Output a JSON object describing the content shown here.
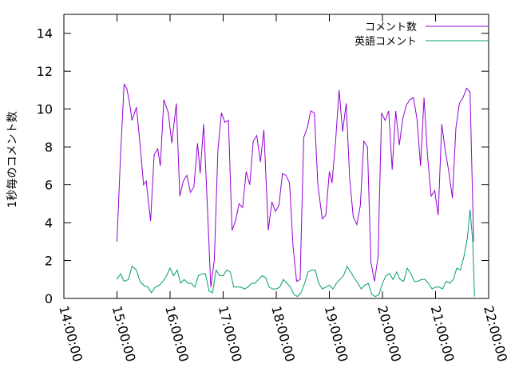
{
  "chart_data": {
    "type": "line",
    "ylabel": "1秒毎のコメント数",
    "xlim": [
      "14:00:00",
      "22:00:00"
    ],
    "ylim": [
      0,
      15
    ],
    "x_ticks": [
      "14:00:00",
      "15:00:00",
      "16:00:00",
      "17:00:00",
      "18:00:00",
      "19:00:00",
      "20:00:00",
      "21:00:00",
      "22:00:00"
    ],
    "y_ticks": [
      "0",
      "2",
      "4",
      "6",
      "8",
      "10",
      "12",
      "14"
    ],
    "grid": false,
    "legend_position": "top-right",
    "series": [
      {
        "name": "コメント数",
        "color": "#9400d3",
        "points": [
          [
            "15:00:00",
            3.0
          ],
          [
            "15:04:00",
            7.5
          ],
          [
            "15:08:00",
            11.3
          ],
          [
            "15:11:00",
            11.1
          ],
          [
            "15:14:00",
            10.4
          ],
          [
            "15:17:00",
            9.4
          ],
          [
            "15:22:00",
            10.1
          ],
          [
            "15:26:00",
            8.2
          ],
          [
            "15:30:00",
            6.0
          ],
          [
            "15:33:00",
            6.2
          ],
          [
            "15:38:00",
            4.1
          ],
          [
            "15:42:00",
            7.6
          ],
          [
            "15:46:00",
            7.9
          ],
          [
            "15:49:00",
            7.0
          ],
          [
            "15:53:00",
            10.5
          ],
          [
            "15:58:00",
            9.8
          ],
          [
            "16:02:00",
            8.2
          ],
          [
            "16:07:00",
            10.3
          ],
          [
            "16:11:00",
            5.4
          ],
          [
            "16:15:00",
            6.2
          ],
          [
            "16:19:00",
            6.5
          ],
          [
            "16:23:00",
            5.6
          ],
          [
            "16:27:00",
            5.9
          ],
          [
            "16:31:00",
            8.2
          ],
          [
            "16:34:00",
            6.6
          ],
          [
            "16:38:00",
            9.2
          ],
          [
            "16:42:00",
            5.0
          ],
          [
            "16:46:00",
            0.6
          ],
          [
            "16:50:00",
            2.0
          ],
          [
            "16:54:00",
            7.8
          ],
          [
            "16:58:00",
            9.8
          ],
          [
            "17:02:00",
            9.3
          ],
          [
            "17:06:00",
            9.4
          ],
          [
            "17:10:00",
            3.6
          ],
          [
            "17:14:00",
            4.1
          ],
          [
            "17:18:00",
            5.0
          ],
          [
            "17:22:00",
            4.8
          ],
          [
            "17:26:00",
            6.7
          ],
          [
            "17:30:00",
            6.0
          ],
          [
            "17:34:00",
            8.3
          ],
          [
            "17:38:00",
            8.6
          ],
          [
            "17:42:00",
            7.2
          ],
          [
            "17:46:00",
            8.9
          ],
          [
            "17:51:00",
            3.6
          ],
          [
            "17:55:00",
            5.1
          ],
          [
            "17:59:00",
            4.6
          ],
          [
            "18:03:00",
            4.9
          ],
          [
            "18:07:00",
            6.6
          ],
          [
            "18:11:00",
            6.5
          ],
          [
            "18:15:00",
            6.1
          ],
          [
            "18:19:00",
            2.7
          ],
          [
            "18:23:00",
            0.9
          ],
          [
            "18:27:00",
            1.0
          ],
          [
            "18:31:00",
            8.5
          ],
          [
            "18:35:00",
            9.0
          ],
          [
            "18:39:00",
            9.9
          ],
          [
            "18:43:00",
            9.8
          ],
          [
            "18:47:00",
            6.0
          ],
          [
            "18:52:00",
            4.2
          ],
          [
            "18:56:00",
            4.4
          ],
          [
            "19:00:00",
            6.7
          ],
          [
            "19:03:00",
            6.1
          ],
          [
            "19:07:00",
            8.3
          ],
          [
            "19:11:00",
            11.0
          ],
          [
            "19:15:00",
            8.8
          ],
          [
            "19:19:00",
            10.3
          ],
          [
            "19:23:00",
            6.3
          ],
          [
            "19:27:00",
            4.3
          ],
          [
            "19:31:00",
            3.9
          ],
          [
            "19:35:00",
            4.9
          ],
          [
            "19:39:00",
            8.3
          ],
          [
            "19:43:00",
            8.0
          ],
          [
            "19:47:00",
            1.9
          ],
          [
            "19:51:00",
            0.9
          ],
          [
            "19:55:00",
            2.2
          ],
          [
            "19:59:00",
            9.8
          ],
          [
            "20:03:00",
            9.4
          ],
          [
            "20:07:00",
            9.9
          ],
          [
            "20:11:00",
            6.8
          ],
          [
            "20:15:00",
            9.9
          ],
          [
            "20:19:00",
            8.1
          ],
          [
            "20:23:00",
            9.5
          ],
          [
            "20:27:00",
            10.2
          ],
          [
            "20:31:00",
            10.5
          ],
          [
            "20:35:00",
            10.6
          ],
          [
            "20:39:00",
            9.5
          ],
          [
            "20:43:00",
            7.0
          ],
          [
            "20:47:00",
            10.6
          ],
          [
            "20:51:00",
            7.5
          ],
          [
            "20:55:00",
            5.4
          ],
          [
            "20:59:00",
            5.7
          ],
          [
            "21:03:00",
            4.4
          ],
          [
            "21:07:00",
            9.2
          ],
          [
            "21:11:00",
            7.8
          ],
          [
            "21:15:00",
            6.7
          ],
          [
            "21:19:00",
            5.3
          ],
          [
            "21:23:00",
            9.0
          ],
          [
            "21:27:00",
            10.3
          ],
          [
            "21:31:00",
            10.6
          ],
          [
            "21:35:00",
            11.1
          ],
          [
            "21:39:00",
            10.9
          ],
          [
            "21:43:00",
            3.0
          ]
        ]
      },
      {
        "name": "英語コメント",
        "color": "#009e73",
        "points": [
          [
            "15:00:00",
            1.0
          ],
          [
            "15:04:00",
            1.3
          ],
          [
            "15:08:00",
            0.9
          ],
          [
            "15:13:00",
            1.0
          ],
          [
            "15:17:00",
            1.7
          ],
          [
            "15:22:00",
            1.5
          ],
          [
            "15:26:00",
            0.9
          ],
          [
            "15:30:00",
            0.7
          ],
          [
            "15:35:00",
            0.6
          ],
          [
            "15:39:00",
            0.3
          ],
          [
            "15:43:00",
            0.6
          ],
          [
            "15:48:00",
            0.7
          ],
          [
            "15:52:00",
            0.9
          ],
          [
            "15:56:00",
            1.2
          ],
          [
            "16:00:00",
            1.6
          ],
          [
            "16:04:00",
            1.2
          ],
          [
            "16:08:00",
            1.5
          ],
          [
            "16:12:00",
            0.8
          ],
          [
            "16:16:00",
            1.0
          ],
          [
            "16:20:00",
            0.8
          ],
          [
            "16:24:00",
            0.8
          ],
          [
            "16:28:00",
            0.6
          ],
          [
            "16:32:00",
            1.2
          ],
          [
            "16:36:00",
            1.3
          ],
          [
            "16:40:00",
            1.3
          ],
          [
            "16:44:00",
            0.4
          ],
          [
            "16:48:00",
            0.3
          ],
          [
            "16:52:00",
            1.5
          ],
          [
            "16:56:00",
            1.2
          ],
          [
            "17:00:00",
            1.2
          ],
          [
            "17:04:00",
            1.5
          ],
          [
            "17:08:00",
            1.4
          ],
          [
            "17:12:00",
            0.6
          ],
          [
            "17:16:00",
            0.6
          ],
          [
            "17:20:00",
            0.6
          ],
          [
            "17:24:00",
            0.5
          ],
          [
            "17:28:00",
            0.6
          ],
          [
            "17:32:00",
            0.8
          ],
          [
            "17:36:00",
            0.8
          ],
          [
            "17:40:00",
            1.0
          ],
          [
            "17:44:00",
            1.2
          ],
          [
            "17:48:00",
            1.1
          ],
          [
            "17:52:00",
            0.6
          ],
          [
            "17:56:00",
            0.5
          ],
          [
            "18:00:00",
            0.5
          ],
          [
            "18:04:00",
            0.6
          ],
          [
            "18:08:00",
            1.0
          ],
          [
            "18:12:00",
            0.8
          ],
          [
            "18:16:00",
            0.6
          ],
          [
            "18:20:00",
            0.2
          ],
          [
            "18:24:00",
            0.1
          ],
          [
            "18:28:00",
            0.3
          ],
          [
            "18:32:00",
            0.8
          ],
          [
            "18:36:00",
            1.4
          ],
          [
            "18:40:00",
            1.5
          ],
          [
            "18:44:00",
            1.5
          ],
          [
            "18:48:00",
            0.8
          ],
          [
            "18:52:00",
            0.5
          ],
          [
            "18:56:00",
            0.6
          ],
          [
            "19:00:00",
            0.7
          ],
          [
            "19:04:00",
            0.5
          ],
          [
            "19:08:00",
            0.8
          ],
          [
            "19:12:00",
            1.0
          ],
          [
            "19:16:00",
            1.2
          ],
          [
            "19:20:00",
            1.7
          ],
          [
            "19:24:00",
            1.4
          ],
          [
            "19:28:00",
            1.1
          ],
          [
            "19:32:00",
            0.8
          ],
          [
            "19:36:00",
            0.5
          ],
          [
            "19:40:00",
            0.7
          ],
          [
            "19:44:00",
            0.8
          ],
          [
            "19:48:00",
            0.2
          ],
          [
            "19:52:00",
            0.1
          ],
          [
            "19:56:00",
            0.2
          ],
          [
            "20:00:00",
            0.8
          ],
          [
            "20:04:00",
            1.2
          ],
          [
            "20:08:00",
            1.3
          ],
          [
            "20:12:00",
            1.0
          ],
          [
            "20:16:00",
            1.4
          ],
          [
            "20:20:00",
            1.0
          ],
          [
            "20:24:00",
            0.9
          ],
          [
            "20:28:00",
            1.6
          ],
          [
            "20:32:00",
            1.3
          ],
          [
            "20:36:00",
            0.9
          ],
          [
            "20:40:00",
            0.9
          ],
          [
            "20:44:00",
            1.0
          ],
          [
            "20:48:00",
            1.0
          ],
          [
            "20:52:00",
            0.8
          ],
          [
            "20:56:00",
            0.5
          ],
          [
            "21:00:00",
            0.6
          ],
          [
            "21:04:00",
            0.6
          ],
          [
            "21:08:00",
            0.5
          ],
          [
            "21:12:00",
            0.9
          ],
          [
            "21:16:00",
            0.8
          ],
          [
            "21:20:00",
            1.0
          ],
          [
            "21:24:00",
            1.6
          ],
          [
            "21:28:00",
            1.5
          ],
          [
            "21:32:00",
            2.2
          ],
          [
            "21:36:00",
            3.2
          ],
          [
            "21:39:00",
            4.7
          ],
          [
            "21:42:00",
            3.0
          ],
          [
            "21:44:00",
            0.1
          ]
        ]
      }
    ]
  }
}
